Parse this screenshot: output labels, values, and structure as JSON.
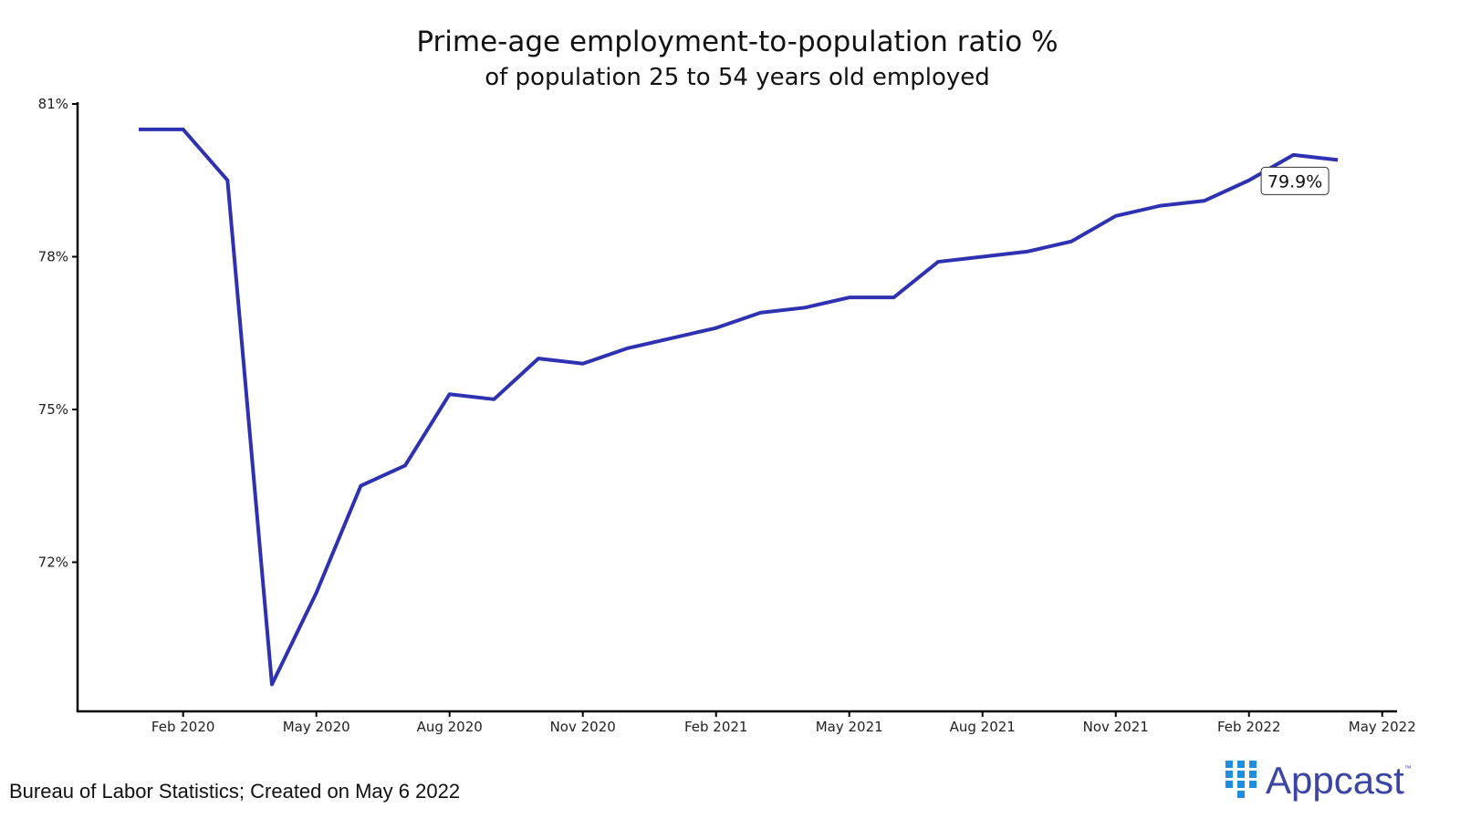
{
  "chart_data": {
    "type": "line",
    "title": "Prime-age employment-to-population ratio %",
    "subtitle": "of population 25 to 54 years old employed",
    "xlabel": "",
    "ylabel": "",
    "x": [
      "Jan 2020",
      "Feb 2020",
      "Mar 2020",
      "Apr 2020",
      "May 2020",
      "Jun 2020",
      "Jul 2020",
      "Aug 2020",
      "Sep 2020",
      "Oct 2020",
      "Nov 2020",
      "Dec 2020",
      "Jan 2021",
      "Feb 2021",
      "Mar 2021",
      "Apr 2021",
      "May 2021",
      "Jun 2021",
      "Jul 2021",
      "Aug 2021",
      "Sep 2021",
      "Oct 2021",
      "Nov 2021",
      "Dec 2021",
      "Jan 2022",
      "Feb 2022",
      "Mar 2022",
      "Apr 2022"
    ],
    "series": [
      {
        "name": "Prime-age employment-to-population ratio",
        "color": "#2e31b0",
        "values": [
          80.5,
          80.5,
          79.5,
          69.6,
          71.4,
          73.5,
          73.9,
          75.3,
          75.2,
          76.0,
          75.9,
          76.2,
          76.4,
          76.6,
          76.9,
          77.0,
          77.2,
          77.2,
          77.9,
          78.0,
          78.1,
          78.3,
          78.8,
          79.0,
          79.1,
          79.5,
          80.0,
          79.9
        ]
      }
    ],
    "ylim": [
      69,
      81
    ],
    "yticks": [
      {
        "value": 81,
        "label": "81%"
      },
      {
        "value": 78,
        "label": "78%"
      },
      {
        "value": 75,
        "label": "75%"
      },
      {
        "value": 72,
        "label": "72%"
      }
    ],
    "xticks": [
      {
        "index": 1,
        "label": "Feb 2020"
      },
      {
        "index": 4,
        "label": "May 2020"
      },
      {
        "index": 7,
        "label": "Aug 2020"
      },
      {
        "index": 10,
        "label": "Nov 2020"
      },
      {
        "index": 13,
        "label": "Feb 2021"
      },
      {
        "index": 16,
        "label": "May 2021"
      },
      {
        "index": 19,
        "label": "Aug 2021"
      },
      {
        "index": 22,
        "label": "Nov 2021"
      },
      {
        "index": 25,
        "label": "Feb 2022"
      },
      {
        "index": 28,
        "label": "May 2022"
      }
    ],
    "annotation": {
      "index": 27,
      "label": "79.9%"
    },
    "grid": false
  },
  "caption": "Bureau of Labor Statistics; Created on May 6 2022",
  "logo": {
    "text": "Appcast",
    "tm": "™",
    "color": "#3b45a6",
    "dot_color": "#1e8fe0"
  }
}
